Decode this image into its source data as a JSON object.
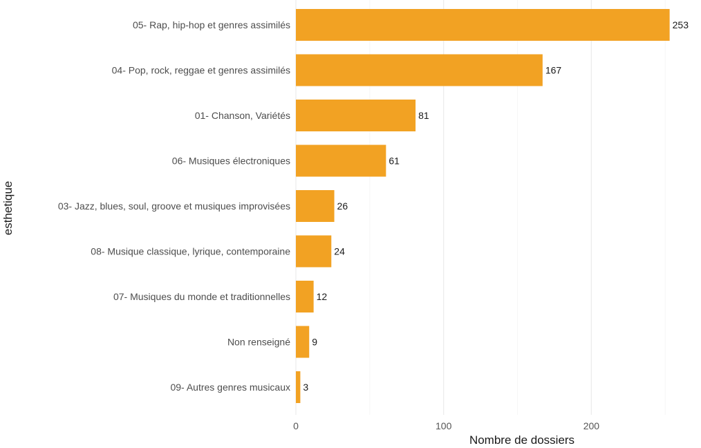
{
  "chart_data": {
    "type": "bar",
    "orientation": "horizontal",
    "categories": [
      "05- Rap, hip-hop et genres assimilés",
      "04- Pop, rock, reggae et genres assimilés",
      "01- Chanson, Variétés",
      "06- Musiques électroniques",
      "03- Jazz, blues, soul, groove et musiques improvisées",
      "08- Musique classique, lyrique, contemporaine",
      "07- Musiques du monde et traditionnelles",
      "Non renseigné",
      "09- Autres genres musicaux"
    ],
    "values": [
      253,
      167,
      81,
      61,
      26,
      24,
      12,
      9,
      3
    ],
    "value_labels": [
      "253",
      "167",
      "81",
      "61",
      "26",
      "24",
      "12",
      "9",
      "3"
    ],
    "xlabel": "Nombre de dossiers",
    "ylabel": "esthetique",
    "xlim": [
      0,
      263
    ],
    "xticks": [
      0,
      100,
      200
    ],
    "xtick_labels": [
      "0",
      "100",
      "200"
    ],
    "grid": true,
    "legend": "none",
    "bar_color": "#f2a223"
  }
}
